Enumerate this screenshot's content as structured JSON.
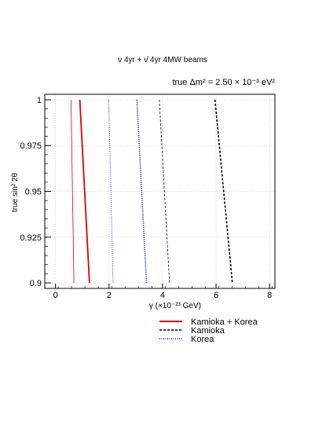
{
  "chart_data": {
    "type": "line",
    "title": "ν 4yr + ν̄ 4yr 4MW beams",
    "subtitle": "true Δm² = 2.50 × 10⁻³ eV²",
    "xlabel": "γ  (×10⁻²³ GeV)",
    "ylabel": "true sin² 2θ",
    "xlim": [
      -0.4,
      8.2
    ],
    "ylim": [
      0.897,
      1.003
    ],
    "x_ticks": [
      0,
      2,
      4,
      6,
      8
    ],
    "x_tick_labels": [
      "0",
      "2",
      "4",
      "6",
      "8"
    ],
    "y_ticks": [
      0.9,
      0.925,
      0.95,
      0.975,
      1
    ],
    "y_tick_labels": [
      "0.9",
      "0.925",
      "0.95",
      "0.975",
      "1"
    ],
    "grid": true,
    "legend_position": "bottom-right",
    "legend": [
      {
        "label": "Kamioka + Korea",
        "color": "#dd0000",
        "style": "solid"
      },
      {
        "label": "Kamioka",
        "color": "#000000",
        "style": "dashed"
      },
      {
        "label": "Korea",
        "color": "#0000cc",
        "style": "dotted"
      }
    ],
    "series": [
      {
        "name": "Kamioka + Korea",
        "color": "#dd0000",
        "style": "solid",
        "width": 0.8,
        "points": [
          [
            0.58,
            1.0
          ],
          [
            0.69,
            0.9
          ]
        ]
      },
      {
        "name": "Kamioka + Korea",
        "color": "#dd0000",
        "style": "solid",
        "width": 1.8,
        "points": [
          [
            0.91,
            1.0
          ],
          [
            1.27,
            0.9
          ]
        ]
      },
      {
        "name": "Korea",
        "color": "#0000cc",
        "style": "dotted",
        "width": 0.8,
        "points": [
          [
            1.99,
            1.0
          ],
          [
            2.15,
            0.9
          ]
        ]
      },
      {
        "name": "Korea",
        "color": "#0000cc",
        "style": "dotted",
        "width": 1.6,
        "points": [
          [
            3.04,
            1.0
          ],
          [
            3.4,
            0.9
          ]
        ]
      },
      {
        "name": "Kamioka",
        "color": "#000000",
        "style": "dashed",
        "width": 0.8,
        "points": [
          [
            3.88,
            1.0
          ],
          [
            4.26,
            0.9
          ]
        ]
      },
      {
        "name": "Kamioka",
        "color": "#000000",
        "style": "dashed",
        "width": 1.6,
        "points": [
          [
            5.96,
            1.0
          ],
          [
            6.61,
            0.9
          ]
        ]
      }
    ]
  }
}
